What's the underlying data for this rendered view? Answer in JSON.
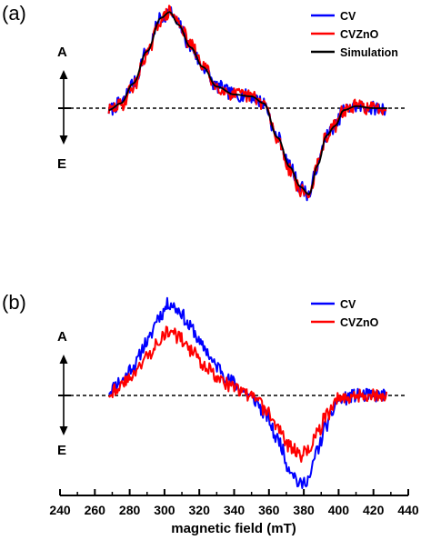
{
  "chart_data": [
    {
      "panel_label": "(a)",
      "type": "line",
      "ylabel_top": "A",
      "ylabel_bottom": "E",
      "legend_position": "top-right",
      "baseline": 0,
      "xlim": [
        240,
        440
      ],
      "ylim": [
        -1,
        1
      ],
      "series": [
        {
          "name": "CV",
          "color": "#0000ff",
          "noise": 0.07,
          "seed": 7,
          "x": [
            268,
            275,
            282,
            290,
            298,
            303,
            308,
            315,
            322,
            330,
            340,
            350,
            357,
            365,
            372,
            378,
            383,
            388,
            393,
            398,
            403,
            410,
            420,
            428
          ],
          "y": [
            -0.02,
            0.05,
            0.25,
            0.58,
            0.92,
            0.98,
            0.85,
            0.62,
            0.42,
            0.22,
            0.14,
            0.12,
            0.05,
            -0.3,
            -0.6,
            -0.8,
            -0.88,
            -0.58,
            -0.28,
            -0.18,
            -0.02,
            0.02,
            0.0,
            0.0
          ]
        },
        {
          "name": "CVZnO",
          "color": "#ff0000",
          "noise": 0.07,
          "seed": 29,
          "x": [
            268,
            275,
            282,
            290,
            298,
            303,
            308,
            315,
            322,
            330,
            340,
            350,
            357,
            365,
            372,
            378,
            383,
            388,
            393,
            398,
            403,
            410,
            420,
            428
          ],
          "y": [
            -0.02,
            0.03,
            0.22,
            0.55,
            0.9,
            0.98,
            0.88,
            0.64,
            0.44,
            0.22,
            0.14,
            0.12,
            0.05,
            -0.32,
            -0.62,
            -0.84,
            -0.88,
            -0.58,
            -0.28,
            -0.18,
            -0.02,
            0.02,
            0.0,
            0.0
          ]
        },
        {
          "name": "Simulation",
          "color": "#000000",
          "noise": 0,
          "seed": 1,
          "x": [
            268,
            275,
            282,
            290,
            298,
            303,
            308,
            315,
            322,
            330,
            340,
            350,
            357,
            365,
            372,
            378,
            383,
            388,
            393,
            398,
            403,
            410,
            420,
            428
          ],
          "y": [
            -0.02,
            0.05,
            0.25,
            0.58,
            0.92,
            0.98,
            0.85,
            0.62,
            0.42,
            0.22,
            0.14,
            0.12,
            0.05,
            -0.3,
            -0.6,
            -0.8,
            -0.88,
            -0.58,
            -0.28,
            -0.18,
            -0.02,
            0.02,
            0.0,
            0.0
          ]
        }
      ]
    },
    {
      "panel_label": "(b)",
      "type": "line",
      "ylabel_top": "A",
      "ylabel_bottom": "E",
      "legend_position": "top-right",
      "baseline": 0,
      "xlim": [
        240,
        440
      ],
      "ylim": [
        -1,
        1
      ],
      "xlabel": "magnetic field (mT)",
      "xticks": [
        240,
        260,
        280,
        300,
        320,
        340,
        360,
        380,
        400,
        420,
        440
      ],
      "series": [
        {
          "name": "CV",
          "color": "#0000ff",
          "noise": 0.07,
          "seed": 11,
          "x": [
            268,
            275,
            282,
            290,
            297,
            303,
            308,
            315,
            322,
            330,
            338,
            345,
            352,
            358,
            365,
            372,
            378,
            383,
            388,
            393,
            400,
            410,
            420,
            428
          ],
          "y": [
            0.05,
            0.15,
            0.3,
            0.55,
            0.82,
            0.95,
            0.88,
            0.7,
            0.5,
            0.3,
            0.15,
            0.05,
            -0.05,
            -0.2,
            -0.45,
            -0.75,
            -0.92,
            -0.85,
            -0.55,
            -0.3,
            -0.05,
            0.0,
            0.0,
            0.0
          ]
        },
        {
          "name": "CVZnO",
          "color": "#ff0000",
          "noise": 0.07,
          "seed": 43,
          "x": [
            268,
            275,
            282,
            290,
            297,
            303,
            308,
            315,
            322,
            330,
            338,
            345,
            352,
            358,
            365,
            372,
            378,
            383,
            388,
            393,
            400,
            410,
            420,
            428
          ],
          "y": [
            0.03,
            0.1,
            0.22,
            0.4,
            0.58,
            0.66,
            0.6,
            0.46,
            0.33,
            0.2,
            0.1,
            0.03,
            -0.03,
            -0.15,
            -0.33,
            -0.52,
            -0.62,
            -0.55,
            -0.38,
            -0.2,
            -0.03,
            0.0,
            0.0,
            0.0
          ]
        }
      ]
    }
  ]
}
